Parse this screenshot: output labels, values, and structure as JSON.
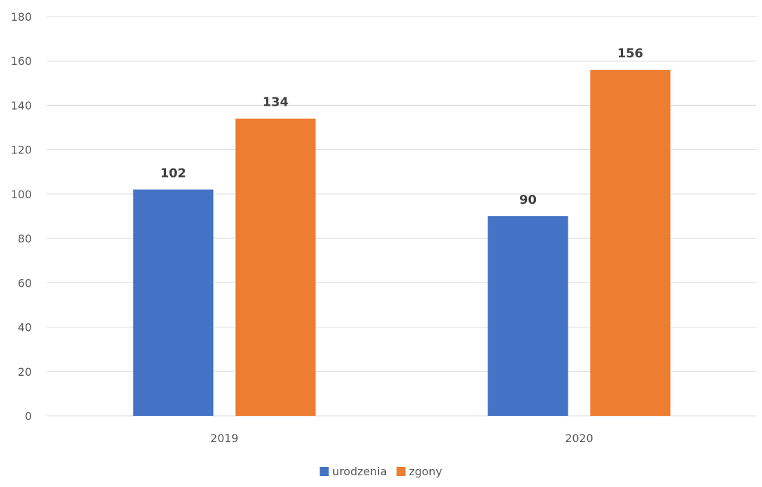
{
  "chart_data": {
    "type": "bar",
    "categories": [
      "2019",
      "2020"
    ],
    "series": [
      {
        "name": "urodzenia",
        "values": [
          102,
          90
        ],
        "color": "#4472C4"
      },
      {
        "name": "zgony",
        "values": [
          134,
          156
        ],
        "color": "#ED7D31"
      }
    ],
    "ylim": [
      0,
      180
    ],
    "yticks": [
      0,
      20,
      40,
      60,
      80,
      100,
      120,
      140,
      160,
      180
    ],
    "grid": true,
    "legend_position": "bottom",
    "data_labels": true,
    "title": "",
    "xlabel": "",
    "ylabel": ""
  }
}
